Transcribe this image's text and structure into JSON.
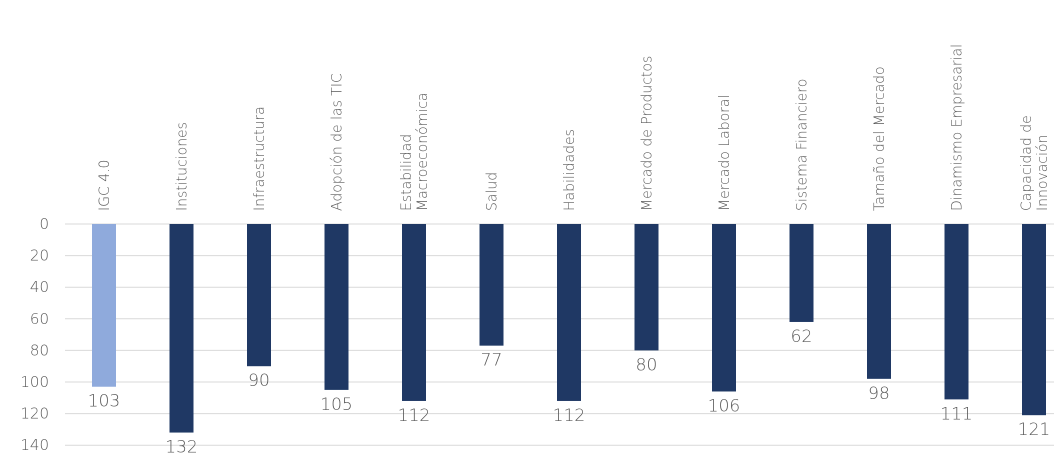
{
  "chart_data": {
    "type": "bar",
    "orientation": "vertical",
    "y_axis_inverted": true,
    "categories": [
      [
        "IGC 4.0"
      ],
      [
        "Instituciones"
      ],
      [
        "Infraestructura"
      ],
      [
        "Adopción de las TIC"
      ],
      [
        "Estabilidad",
        "Macroeconómica"
      ],
      [
        "Salud"
      ],
      [
        "Habilidades"
      ],
      [
        "Mercado de Productos"
      ],
      [
        "Mercado Laboral"
      ],
      [
        "Sistema Financiero"
      ],
      [
        "Tamaño del Mercado"
      ],
      [
        "Dinamismo Empresarial"
      ],
      [
        "Capacidad de",
        "Innovación"
      ]
    ],
    "values": [
      103,
      132,
      90,
      105,
      112,
      77,
      112,
      80,
      106,
      62,
      98,
      111,
      121
    ],
    "data_labels": [
      "103",
      "132",
      "90",
      "105",
      "112",
      "77",
      "112",
      "80",
      "106",
      "62",
      "98",
      "111",
      "121"
    ],
    "bar_colors": [
      "#8faadc",
      "#1f3864",
      "#1f3864",
      "#1f3864",
      "#1f3864",
      "#1f3864",
      "#1f3864",
      "#1f3864",
      "#1f3864",
      "#1f3864",
      "#1f3864",
      "#1f3864",
      "#1f3864"
    ],
    "y_ticks": [
      "0",
      "20",
      "40",
      "60",
      "80",
      "100",
      "120",
      "140"
    ],
    "ylim": [
      0,
      140
    ],
    "grid": true,
    "title": "",
    "xlabel": "",
    "ylabel": ""
  }
}
